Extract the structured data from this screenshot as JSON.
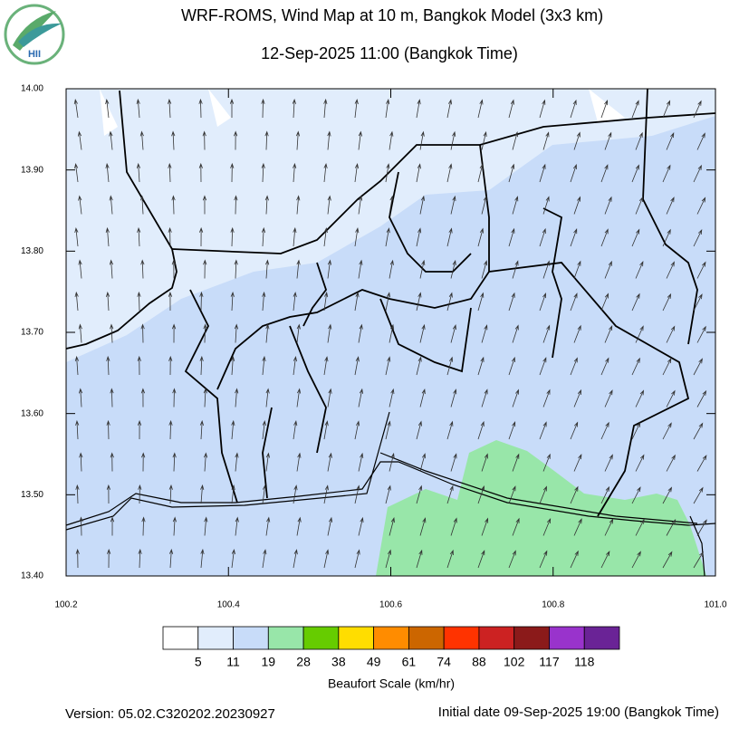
{
  "logo": {
    "text": "HII"
  },
  "header": {
    "title": "WRF-ROMS, Wind Map at 10 m, Bangkok Model (3x3 km)",
    "subtitle": "12-Sep-2025 11:00 (Bangkok Time)"
  },
  "map": {
    "xlim": [
      100.2,
      101.0
    ],
    "ylim": [
      13.4,
      14.0
    ],
    "xticks": [
      100.2,
      100.4,
      100.6,
      100.8,
      {
        "value": 101.0,
        "label": "101.0"
      }
    ],
    "yticks": [
      {
        "value": 13.4,
        "label": "13.40"
      },
      {
        "value": 13.5,
        "label": "13.50"
      },
      {
        "value": 13.6,
        "label": "13.60"
      },
      {
        "value": 13.7,
        "label": "13.70"
      },
      {
        "value": 13.8,
        "label": "13.80"
      },
      {
        "value": 13.9,
        "label": "13.90"
      },
      {
        "value": 14.0,
        "label": "14.00"
      }
    ]
  },
  "legend": {
    "title": "Beaufort Scale (km/hr)",
    "bounds": [
      5,
      11,
      19,
      28,
      38,
      49,
      61,
      74,
      88,
      102,
      117,
      118
    ],
    "colors": [
      "#ffffff",
      "#e1edfc",
      "#c8dcf9",
      "#98e6a9",
      "#66cc00",
      "#ffdd00",
      "#ff8c00",
      "#cc6600",
      "#ff3300",
      "#cc2222",
      "#8b1a1a",
      "#9933cc",
      "#6a2396"
    ]
  },
  "footer": {
    "version": "Version: 05.02.C320202.20230927",
    "initial": "Initial date 09-Sep-2025 19:00 (Bangkok Time)"
  }
}
